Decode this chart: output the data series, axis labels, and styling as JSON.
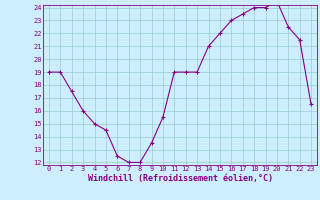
{
  "x": [
    0,
    1,
    2,
    3,
    4,
    5,
    6,
    7,
    8,
    9,
    10,
    11,
    12,
    13,
    14,
    15,
    16,
    17,
    18,
    19,
    20,
    21,
    22,
    23
  ],
  "y": [
    19.0,
    19.0,
    17.5,
    16.0,
    15.0,
    14.5,
    12.5,
    12.0,
    12.0,
    13.5,
    15.5,
    19.0,
    19.0,
    19.0,
    21.0,
    22.0,
    23.0,
    23.5,
    24.0,
    24.0,
    24.5,
    22.5,
    21.5,
    16.5
  ],
  "ylim": [
    12,
    24
  ],
  "yticks": [
    12,
    13,
    14,
    15,
    16,
    17,
    18,
    19,
    20,
    21,
    22,
    23,
    24
  ],
  "xticks": [
    0,
    1,
    2,
    3,
    4,
    5,
    6,
    7,
    8,
    9,
    10,
    11,
    12,
    13,
    14,
    15,
    16,
    17,
    18,
    19,
    20,
    21,
    22,
    23
  ],
  "xlabel": "Windchill (Refroidissement éolien,°C)",
  "line_color": "#880088",
  "marker": "+",
  "bg_color": "#cceeff",
  "grid_color": "#99cccc",
  "tick_fontsize": 5,
  "label_fontsize": 6,
  "spine_color": "#880088"
}
